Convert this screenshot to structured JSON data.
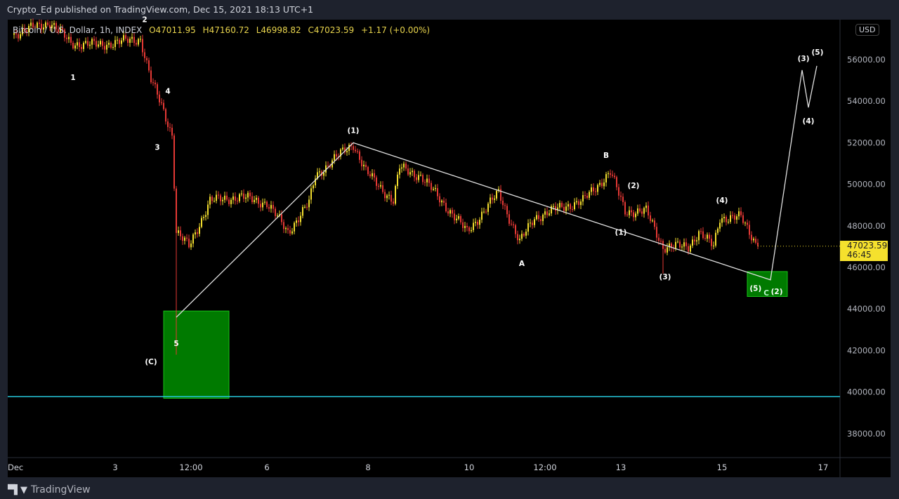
{
  "header": {
    "published": "Crypto_Ed published on TradingView.com, Dec 15, 2021 18:13 UTC+1"
  },
  "legend": {
    "symbol": "Bitcoin / U.S. Dollar, 1h, INDEX",
    "open": "O47011.95",
    "high": "H47160.72",
    "low": "L46998.82",
    "close": "C47023.59",
    "change": "+1.17 (+0.00%)"
  },
  "price_axis": {
    "currency": "USD",
    "last_price": "47023.59",
    "countdown": "46:45"
  },
  "footer": {
    "brand": "TradingView",
    "logo_text": "TV"
  },
  "colors": {
    "up": "#f2dd2e",
    "down": "#e53935",
    "background": "#000000",
    "support_line": "#26c6da",
    "zone": "#0b7a0b",
    "drawing": "#e0e0e0"
  },
  "chart_data": {
    "type": "candlestick",
    "interval": "1h",
    "title": "Bitcoin / U.S. Dollar, 1h, INDEX",
    "ylim": [
      37000,
      58200
    ],
    "xlim": [
      "2021-11-30 22:00",
      "2021-12-17 09:00"
    ],
    "y_ticks": [
      "56000.00",
      "54000.00",
      "52000.00",
      "50000.00",
      "48000.00",
      "46000.00",
      "44000.00",
      "42000.00",
      "40000.00",
      "38000.00"
    ],
    "y_tick_values": [
      56000,
      54000,
      52000,
      50000,
      48000,
      46000,
      44000,
      42000,
      40000,
      38000
    ],
    "x_ticks": [
      {
        "label": "Dec",
        "t": "2021-12-01 00:00"
      },
      {
        "label": "3",
        "t": "2021-12-03 00:00"
      },
      {
        "label": "12:00",
        "t": "2021-12-04 12:00"
      },
      {
        "label": "6",
        "t": "2021-12-06 00:00"
      },
      {
        "label": "8",
        "t": "2021-12-08 00:00"
      },
      {
        "label": "10",
        "t": "2021-12-10 00:00"
      },
      {
        "label": "12:00",
        "t": "2021-12-11 12:00"
      },
      {
        "label": "13",
        "t": "2021-12-13 00:00"
      },
      {
        "label": "15",
        "t": "2021-12-15 00:00"
      },
      {
        "label": "17",
        "t": "2021-12-17 00:00"
      }
    ],
    "price_path": [
      {
        "t": "2021-11-30 23:00",
        "c": 57200
      },
      {
        "t": "2021-12-01 17:00",
        "c": 57800
      },
      {
        "t": "2021-12-02 03:00",
        "c": 56800
      },
      {
        "t": "2021-12-02 16:00",
        "c": 56700
      },
      {
        "t": "2021-12-03 12:00",
        "c": 57000
      },
      {
        "t": "2021-12-03 17:00",
        "c": 55000
      },
      {
        "t": "2021-12-03 22:00",
        "c": 53800
      },
      {
        "t": "2021-12-04 03:00",
        "c": 52400
      },
      {
        "t": "2021-12-04 05:00",
        "c": 47700,
        "l": 41800
      },
      {
        "t": "2021-12-04 11:00",
        "c": 47000
      },
      {
        "t": "2021-12-04 21:00",
        "c": 49200
      },
      {
        "t": "2021-12-05 11:00",
        "c": 49400
      },
      {
        "t": "2021-12-06 00:00",
        "c": 49100
      },
      {
        "t": "2021-12-06 10:00",
        "c": 47700
      },
      {
        "t": "2021-12-06 20:00",
        "c": 49100
      },
      {
        "t": "2021-12-06 23:00",
        "c": 50400
      },
      {
        "t": "2021-12-07 09:00",
        "c": 51300
      },
      {
        "t": "2021-12-07 17:00",
        "c": 51950
      },
      {
        "t": "2021-12-07 23:00",
        "c": 50600
      },
      {
        "t": "2021-12-08 12:00",
        "c": 49200
      },
      {
        "t": "2021-12-08 15:00",
        "c": 50800
      },
      {
        "t": "2021-12-09 01:00",
        "c": 50400
      },
      {
        "t": "2021-12-09 15:00",
        "c": 48700
      },
      {
        "t": "2021-12-09 23:00",
        "c": 47700
      },
      {
        "t": "2021-12-10 14:00",
        "c": 49600
      },
      {
        "t": "2021-12-11 00:00",
        "c": 47200
      },
      {
        "t": "2021-12-11 07:00",
        "c": 48400
      },
      {
        "t": "2021-12-11 20:00",
        "c": 48900
      },
      {
        "t": "2021-12-12 06:00",
        "c": 49200
      },
      {
        "t": "2021-12-12 19:00",
        "c": 50600
      },
      {
        "t": "2021-12-13 02:00",
        "c": 48700
      },
      {
        "t": "2021-12-13 12:00",
        "c": 48700
      },
      {
        "t": "2021-12-13 20:00",
        "c": 47000,
        "l": 45700
      },
      {
        "t": "2021-12-14 08:00",
        "c": 47000
      },
      {
        "t": "2021-12-14 13:00",
        "c": 47700
      },
      {
        "t": "2021-12-14 20:00",
        "c": 47000
      },
      {
        "t": "2021-12-14 23:00",
        "c": 48400
      },
      {
        "t": "2021-12-15 09:00",
        "c": 48400
      },
      {
        "t": "2021-12-15 17:00",
        "c": 47023.59
      }
    ],
    "horizontal_lines": [
      {
        "price": 39780
      }
    ],
    "zones": [
      {
        "t1": "2021-12-03 23:00",
        "t2": "2021-12-05 06:00",
        "p1": 43900,
        "p2": 39700
      },
      {
        "t1": "2021-12-15 12:00",
        "t2": "2021-12-16 07:00",
        "p1": 45800,
        "p2": 44600
      }
    ],
    "projection_path": [
      {
        "t": "2021-12-04 05:00",
        "p": 43600
      },
      {
        "t": "2021-12-07 17:00",
        "p": 52000
      },
      {
        "t": "2021-12-15 23:00",
        "p": 45400
      },
      {
        "t": "2021-12-16 14:00",
        "p": 55500
      },
      {
        "t": "2021-12-16 17:00",
        "p": 53700
      },
      {
        "t": "2021-12-16 21:00",
        "p": 55700
      }
    ],
    "wave_labels": [
      {
        "text": "1",
        "t": "2021-12-02 04:00",
        "p": 55150
      },
      {
        "text": "2",
        "t": "2021-12-03 14:00",
        "p": 57950
      },
      {
        "text": "3",
        "t": "2021-12-03 20:00",
        "p": 51800
      },
      {
        "text": "4",
        "t": "2021-12-04 01:00",
        "p": 54500
      },
      {
        "text": "5",
        "t": "2021-12-04 05:00",
        "p": 42350
      },
      {
        "text": "(C)",
        "t": "2021-12-03 17:00",
        "p": 41470
      },
      {
        "text": "(1)",
        "t": "2021-12-07 17:00",
        "p": 52600
      },
      {
        "text": "A",
        "t": "2021-12-11 01:00",
        "p": 46200
      },
      {
        "text": "B",
        "t": "2021-12-12 17:00",
        "p": 51400
      },
      {
        "text": "(1)",
        "t": "2021-12-13 00:00",
        "p": 47700
      },
      {
        "text": "(2)",
        "t": "2021-12-13 06:00",
        "p": 49950
      },
      {
        "text": "(3)",
        "t": "2021-12-13 21:00",
        "p": 45560
      },
      {
        "text": "(4)",
        "t": "2021-12-15 00:00",
        "p": 49250
      },
      {
        "text": "(5)",
        "t": "2021-12-15 17:00",
        "p": 45000
      },
      {
        "text": "C",
        "t": "2021-12-15 22:00",
        "p": 44780,
        "color": "#b9f6ca"
      },
      {
        "text": "(2)",
        "t": "2021-12-16 00:00",
        "p": 44850
      },
      {
        "text": "(3)",
        "t": "2021-12-16 15:00",
        "p": 56070
      },
      {
        "text": "(4)",
        "t": "2021-12-16 17:00",
        "p": 53060
      },
      {
        "text": "(5)",
        "t": "2021-12-16 21:00",
        "p": 56370
      }
    ]
  }
}
